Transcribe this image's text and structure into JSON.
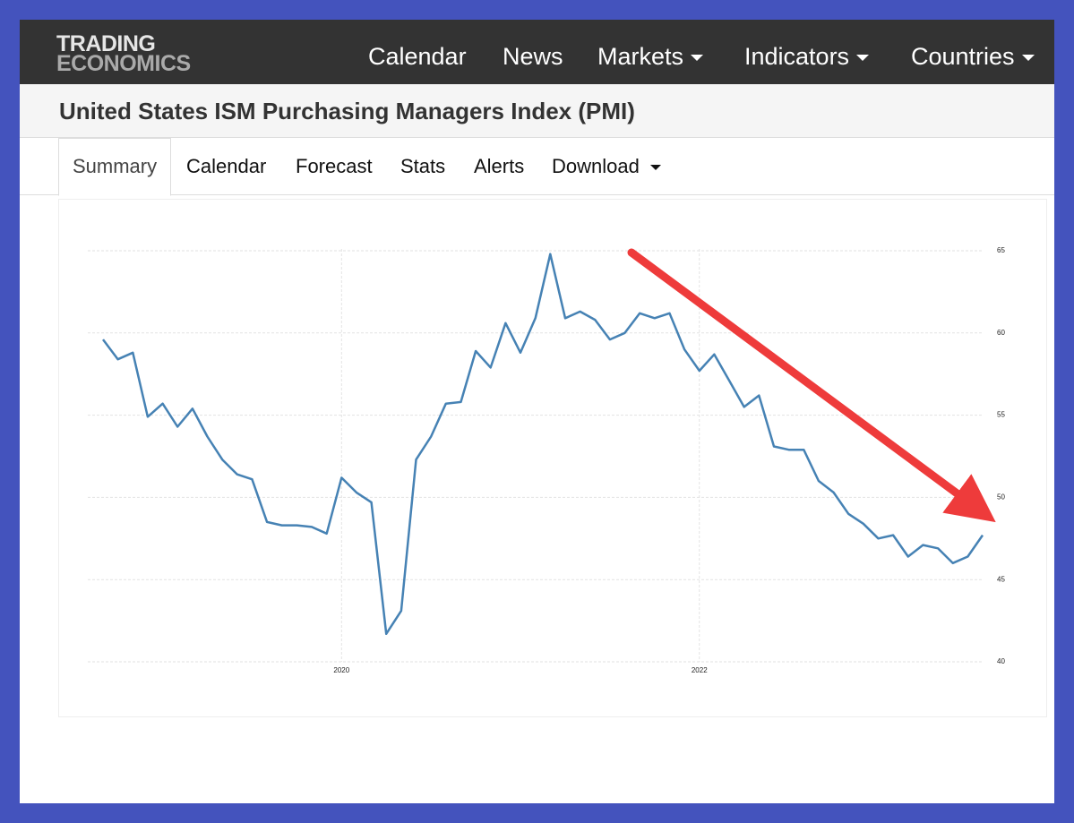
{
  "nav": {
    "logo": [
      "TRADING",
      "ECONOMICS"
    ],
    "items": [
      "Calendar",
      "News",
      "Markets",
      "Indicators",
      "Countries"
    ]
  },
  "header": {
    "title": "United States ISM Purchasing Managers Index (PMI)"
  },
  "tabs": [
    "Summary",
    "Calendar",
    "Forecast",
    "Stats",
    "Alerts",
    "Download"
  ],
  "chart_data": {
    "type": "line",
    "categories": [
      null,
      null,
      null,
      null,
      null,
      null,
      null,
      null,
      null,
      null,
      null,
      null,
      null,
      null,
      null,
      null,
      "2020",
      null,
      null,
      null,
      null,
      null,
      null,
      null,
      null,
      null,
      null,
      null,
      null,
      null,
      null,
      null,
      null,
      null,
      null,
      null,
      null,
      null,
      null,
      null,
      "2022",
      null,
      null,
      null,
      null,
      null,
      null,
      null,
      null,
      null,
      null,
      null,
      null,
      null,
      null,
      null,
      null,
      null,
      null,
      null
    ],
    "values": [
      59.6,
      58.4,
      58.8,
      54.9,
      55.7,
      54.3,
      55.4,
      53.7,
      52.3,
      51.4,
      51.1,
      48.5,
      48.3,
      48.3,
      48.2,
      47.8,
      51.2,
      50.3,
      49.7,
      41.7,
      43.1,
      52.3,
      53.7,
      55.7,
      55.8,
      58.9,
      57.9,
      60.6,
      58.8,
      60.9,
      64.8,
      60.9,
      61.3,
      60.8,
      59.6,
      60.0,
      61.2,
      60.9,
      61.2,
      59.0,
      57.7,
      58.7,
      57.1,
      55.5,
      56.2,
      53.1,
      52.9,
      52.9,
      51.0,
      50.3,
      49.0,
      48.4,
      47.5,
      47.7,
      46.4,
      47.1,
      46.9,
      46.0,
      46.4,
      47.7
    ],
    "color": "#4682b4",
    "ylim": [
      40,
      65
    ],
    "yticks": [
      40,
      45,
      50,
      55,
      60,
      65
    ],
    "grid": true
  }
}
